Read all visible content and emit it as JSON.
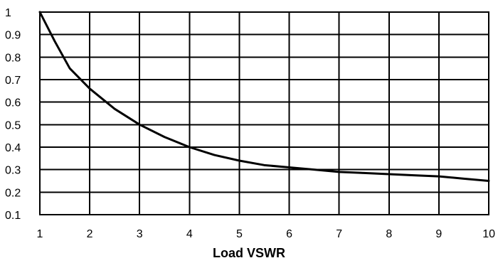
{
  "chart_data": {
    "type": "line",
    "title": "",
    "xlabel": "Load VSWR",
    "ylabel": "",
    "xlim": [
      1,
      10
    ],
    "ylim": [
      0.1,
      1
    ],
    "x_ticks": [
      1,
      2,
      3,
      4,
      5,
      6,
      7,
      8,
      9,
      10
    ],
    "y_ticks": [
      0.1,
      0.2,
      0.3,
      0.4,
      0.5,
      0.6,
      0.7,
      0.8,
      0.9,
      1
    ],
    "x_tick_labels": [
      "1",
      "2",
      "3",
      "4",
      "5",
      "6",
      "7",
      "8",
      "9",
      "10"
    ],
    "y_tick_labels": [
      "0.1",
      "0.2",
      "0.3",
      "0.4",
      "0.5",
      "0.6",
      "0.7",
      "0.8",
      "0.9",
      "1"
    ],
    "grid": true,
    "legend": "none",
    "series": [
      {
        "color": "#000000",
        "x": [
          1,
          1.3,
          1.6,
          2,
          2.5,
          3,
          3.5,
          4,
          4.5,
          5,
          5.5,
          6,
          6.5,
          7,
          7.5,
          8,
          8.5,
          9,
          9.5,
          10
        ],
        "y": [
          1,
          0.87,
          0.75,
          0.66,
          0.57,
          0.5,
          0.445,
          0.4,
          0.365,
          0.34,
          0.32,
          0.31,
          0.3,
          0.29,
          0.285,
          0.28,
          0.275,
          0.27,
          0.26,
          0.25
        ]
      }
    ]
  }
}
